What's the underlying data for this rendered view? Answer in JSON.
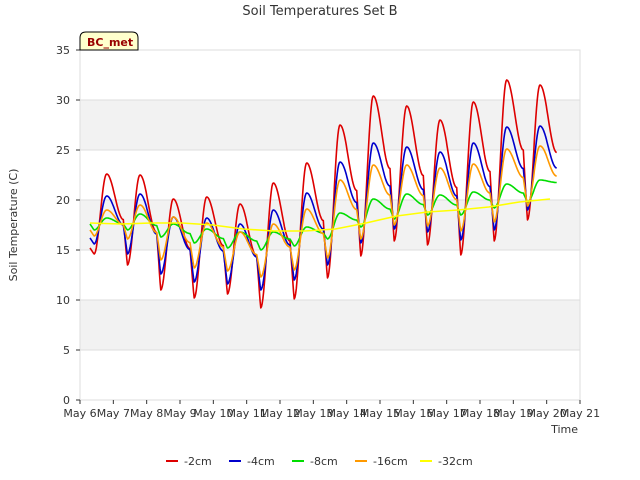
{
  "chart_data": {
    "type": "line",
    "title": "Soil Temperatures Set B",
    "xlabel": "Time",
    "ylabel": "Soil Temperature (C)",
    "badge": "BC_met",
    "xlim": [
      6,
      21
    ],
    "ylim": [
      0,
      35
    ],
    "x_ticks": [
      6,
      7,
      8,
      9,
      10,
      11,
      12,
      13,
      14,
      15,
      16,
      17,
      18,
      19,
      20,
      21
    ],
    "x_tick_labels": [
      "May 6",
      "May 7",
      "May 8",
      "May 9",
      "May 10",
      "May 11",
      "May 12",
      "May 13",
      "May 14",
      "May 15",
      "May 16",
      "May 17",
      "May 18",
      "May 19",
      "May 20",
      "May 21"
    ],
    "y_ticks": [
      0,
      5,
      10,
      15,
      20,
      25,
      30,
      35
    ],
    "y_tick_labels": [
      "0",
      "5",
      "10",
      "15",
      "20",
      "25",
      "30",
      "35"
    ],
    "grid": true,
    "legend_position": "bottom",
    "x_day_starts": [
      6,
      7,
      8,
      9,
      10,
      11,
      12,
      13,
      14,
      15,
      16,
      17,
      18,
      19,
      20
    ],
    "series": [
      {
        "name": "-2cm",
        "color": "#dd0000",
        "day_min": [
          14.6,
          13.5,
          11.0,
          10.2,
          10.6,
          9.2,
          10.1,
          12.2,
          14.4,
          15.9,
          15.5,
          14.5,
          15.9,
          18.0,
          18.0
        ],
        "day_max": [
          22.6,
          22.5,
          20.1,
          20.3,
          19.6,
          21.7,
          23.7,
          27.5,
          30.4,
          29.4,
          28.0,
          29.8,
          32.0,
          31.5,
          31.5
        ]
      },
      {
        "name": "-4cm",
        "color": "#0000cc",
        "day_min": [
          15.6,
          14.6,
          12.6,
          11.8,
          11.6,
          11.0,
          12.0,
          13.5,
          15.7,
          17.1,
          16.8,
          16.0,
          17.0,
          19.0,
          19.0
        ],
        "day_max": [
          20.4,
          20.6,
          18.3,
          18.2,
          17.6,
          19.0,
          20.7,
          23.8,
          25.7,
          25.3,
          24.8,
          25.7,
          27.3,
          27.4,
          27.4
        ]
      },
      {
        "name": "-8cm",
        "color": "#00dd00",
        "day_min": [
          17.0,
          17.0,
          16.3,
          15.7,
          15.2,
          15.0,
          15.4,
          16.1,
          17.3,
          18.1,
          18.5,
          18.5,
          19.2,
          19.8,
          21.5
        ],
        "day_max": [
          18.2,
          18.6,
          17.6,
          17.1,
          16.8,
          16.8,
          17.3,
          18.7,
          20.1,
          20.6,
          20.5,
          20.8,
          21.6,
          22.0,
          22.1
        ]
      },
      {
        "name": "-16cm",
        "color": "#ff9900",
        "day_min": [
          16.4,
          16.1,
          14.0,
          13.2,
          12.9,
          12.3,
          13.0,
          14.2,
          16.1,
          17.5,
          17.4,
          16.9,
          17.8,
          19.4,
          19.4
        ],
        "day_max": [
          19.0,
          19.5,
          18.3,
          17.7,
          16.8,
          17.6,
          19.1,
          22.0,
          23.5,
          23.5,
          23.2,
          23.6,
          25.1,
          25.4,
          25.4
        ]
      },
      {
        "name": "-32cm",
        "color": "#ffff00",
        "values": [
          17.7,
          17.6,
          17.7,
          17.7,
          17.5,
          17.1,
          16.9,
          16.9,
          17.1,
          17.7,
          18.4,
          18.8,
          19.0,
          19.3,
          19.8,
          20.1
        ]
      }
    ]
  }
}
